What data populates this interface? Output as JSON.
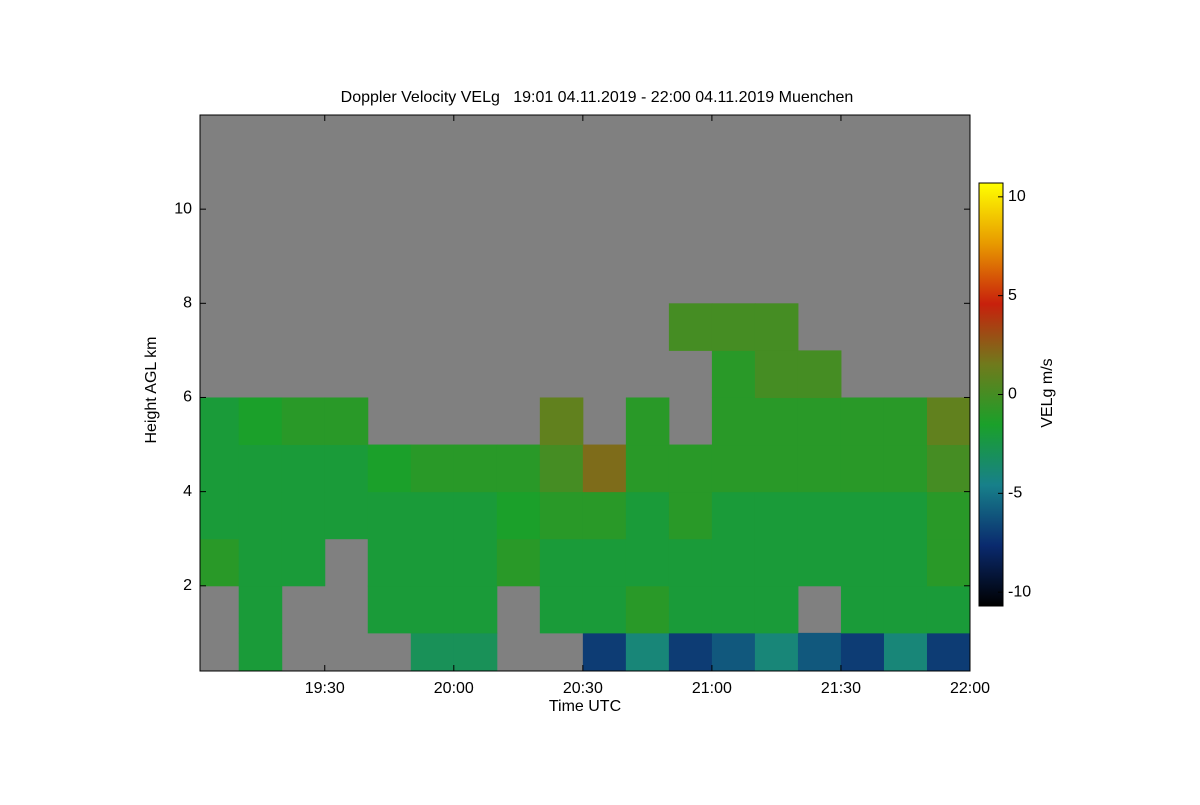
{
  "chart_data": {
    "type": "heatmap",
    "title": "Doppler Velocity VELg   19:01 04.11.2019 - 22:00 04.11.2019 Muenchen",
    "xlabel": "Time UTC",
    "ylabel": "Height AGL km",
    "colorbar_label": "VELg m/s",
    "x_bins": [
      1141,
      1150,
      1160,
      1170,
      1180,
      1190,
      1200,
      1210,
      1220,
      1230,
      1240,
      1250,
      1260,
      1270,
      1280,
      1290,
      1300,
      1310,
      1320
    ],
    "y_bins": [
      0.19,
      1,
      2,
      3,
      4,
      5,
      6,
      7,
      8,
      9,
      10,
      11,
      12
    ],
    "values": [
      [
        null,
        -2,
        null,
        null,
        null,
        -3,
        -3,
        null,
        null,
        -7,
        -4,
        -7,
        -6,
        -4,
        -6,
        -7,
        -4,
        -7
      ],
      [
        null,
        -2,
        null,
        null,
        -2,
        -2,
        -2,
        null,
        -2,
        -2,
        -1,
        -2,
        -2,
        -2,
        null,
        -2,
        -2,
        -2
      ],
      [
        -1,
        -2,
        -2,
        null,
        -2,
        -2,
        -2,
        -1,
        -2,
        -2,
        -2,
        -2,
        -2,
        -2,
        -2,
        -2,
        -2,
        -1
      ],
      [
        -2,
        -2,
        -2,
        -2,
        -2,
        -2,
        -2,
        -1.5,
        -1,
        -1,
        -2,
        -1,
        -2,
        -2,
        -2,
        -2,
        -2,
        -1
      ],
      [
        -2,
        -2,
        -2,
        -2,
        -1.5,
        -1,
        -1,
        -1,
        0,
        2,
        -1,
        -1,
        -1,
        -1,
        -1,
        -1,
        -1,
        0
      ],
      [
        -2,
        -1.5,
        -1,
        -1,
        null,
        null,
        null,
        null,
        1,
        null,
        -1,
        null,
        -1,
        -1,
        -1,
        -1,
        -1,
        1
      ],
      [
        null,
        null,
        null,
        null,
        null,
        null,
        null,
        null,
        null,
        null,
        null,
        null,
        -1,
        0,
        0,
        null,
        null,
        null
      ],
      [
        null,
        null,
        null,
        null,
        null,
        null,
        null,
        null,
        null,
        null,
        null,
        0,
        0,
        0,
        null,
        null,
        null,
        null
      ],
      [
        null,
        null,
        null,
        null,
        null,
        null,
        null,
        null,
        null,
        null,
        null,
        null,
        null,
        null,
        null,
        null,
        null,
        null
      ],
      [
        null,
        null,
        null,
        null,
        null,
        null,
        null,
        null,
        null,
        null,
        null,
        null,
        null,
        null,
        null,
        null,
        null,
        null
      ],
      [
        null,
        null,
        null,
        null,
        null,
        null,
        null,
        null,
        null,
        null,
        null,
        null,
        null,
        null,
        null,
        null,
        null,
        null
      ],
      [
        null,
        null,
        null,
        null,
        null,
        null,
        null,
        null,
        null,
        null,
        null,
        null,
        null,
        null,
        null,
        null,
        null,
        null
      ]
    ],
    "xlim": [
      1141,
      1320
    ],
    "xticks": [
      {
        "value": 1170,
        "label": "19:30"
      },
      {
        "value": 1200,
        "label": "20:00"
      },
      {
        "value": 1230,
        "label": "20:30"
      },
      {
        "value": 1260,
        "label": "21:00"
      },
      {
        "value": 1290,
        "label": "21:30"
      },
      {
        "value": 1320,
        "label": "22:00"
      }
    ],
    "ylim": [
      0.19,
      12
    ],
    "yticks": [
      2,
      4,
      6,
      8,
      10
    ],
    "zlim": [
      -10.7,
      10.7
    ],
    "zticks": [
      -10,
      -5,
      0,
      5,
      10
    ],
    "colorscale": [
      "#000000",
      "#0a2a6e",
      "#17808a",
      "#1aa02a",
      "#707a1c",
      "#c8200c",
      "#e89a00",
      "#ffff00"
    ],
    "missing_color": "#808080"
  }
}
